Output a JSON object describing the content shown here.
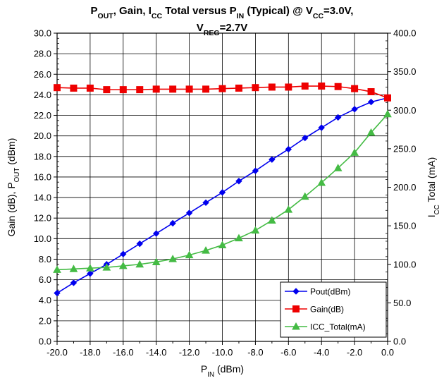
{
  "chart_data": {
    "type": "line",
    "title": {
      "line1": [
        {
          "t": "P"
        },
        {
          "t": "OUT",
          "sub": true
        },
        {
          "t": ", Gain, I"
        },
        {
          "t": "CC",
          "sub": true
        },
        {
          "t": " Total versus P"
        },
        {
          "t": "IN",
          "sub": true
        },
        {
          "t": " (Typical) @ V"
        },
        {
          "t": "CC",
          "sub": true
        },
        {
          "t": "=3.0V,"
        }
      ],
      "line2": [
        {
          "t": "V"
        },
        {
          "t": "REG",
          "sub": true
        },
        {
          "t": "=2.7V"
        }
      ]
    },
    "xlabel": [
      {
        "t": "P"
      },
      {
        "t": "IN",
        "sub": true
      },
      {
        "t": " (dBm)"
      }
    ],
    "ylabel_left": [
      {
        "t": "Gain (dB),  P"
      },
      {
        "t": "OUT",
        "sub": true
      },
      {
        "t": " (dBm)"
      }
    ],
    "ylabel_right": [
      {
        "t": "I"
      },
      {
        "t": "CC",
        "sub": true
      },
      {
        "t": " Total (mA)"
      }
    ],
    "x_range": [
      -20,
      0
    ],
    "x_ticks": [
      "-20.0",
      "-18.0",
      "-16.0",
      "-14.0",
      "-12.0",
      "-10.0",
      "-8.0",
      "-6.0",
      "-4.0",
      "-2.0",
      "0.0"
    ],
    "y_left_range": [
      0,
      30
    ],
    "y_left_ticks": [
      "0.0",
      "2.0",
      "4.0",
      "6.0",
      "8.0",
      "10.0",
      "12.0",
      "14.0",
      "16.0",
      "18.0",
      "20.0",
      "22.0",
      "24.0",
      "26.0",
      "28.0",
      "30.0"
    ],
    "y_right_range": [
      0,
      400
    ],
    "y_right_ticks": [
      "0.0",
      "50.0",
      "100.0",
      "150.0",
      "200.0",
      "250.0",
      "300.0",
      "350.0",
      "400.0"
    ],
    "grid": true,
    "legend_position": "bottom-right",
    "x": [
      -20,
      -19,
      -18,
      -17,
      -16,
      -15,
      -14,
      -13,
      -12,
      -11,
      -10,
      -9,
      -8,
      -7,
      -6,
      -5,
      -4,
      -3,
      -2,
      -1,
      0
    ],
    "series": [
      {
        "name": "Pout(dBm)",
        "axis": "left",
        "color": "#0000ee",
        "marker": "diamond",
        "values": [
          4.7,
          5.7,
          6.6,
          7.5,
          8.5,
          9.5,
          10.5,
          11.5,
          12.5,
          13.5,
          14.5,
          15.6,
          16.6,
          17.7,
          18.7,
          19.8,
          20.8,
          21.8,
          22.6,
          23.3,
          23.7
        ]
      },
      {
        "name": "Gain(dB)",
        "axis": "left",
        "color": "#ee0000",
        "marker": "square",
        "values": [
          24.7,
          24.65,
          24.65,
          24.5,
          24.5,
          24.5,
          24.55,
          24.55,
          24.55,
          24.55,
          24.6,
          24.65,
          24.7,
          24.75,
          24.75,
          24.85,
          24.85,
          24.8,
          24.6,
          24.3,
          23.7
        ]
      },
      {
        "name": "ICC_Total(mA)",
        "axis": "right",
        "color": "#44bb44",
        "marker": "triangle",
        "values": [
          93,
          94,
          95,
          96,
          98,
          100,
          103,
          107,
          112,
          118,
          125,
          134,
          144,
          157,
          171,
          188,
          206,
          225,
          245,
          271,
          295
        ]
      }
    ]
  }
}
